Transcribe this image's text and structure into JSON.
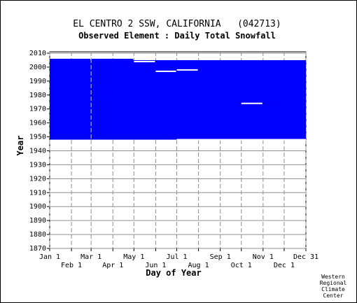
{
  "chart_data": {
    "type": "heatmap",
    "title": "EL CENTRO 2 SSW, CALIFORNIA   (042713)",
    "subtitle": "Observed Element : Daily Total Snowfall",
    "xlabel": "Day of Year",
    "ylabel": "Year",
    "ylim": [
      1870,
      2011
    ],
    "xlim": [
      1,
      366
    ],
    "yticks": [
      1870,
      1880,
      1890,
      1900,
      1910,
      1920,
      1930,
      1940,
      1950,
      1960,
      1970,
      1980,
      1990,
      2000,
      2010
    ],
    "xticks_top_row": [
      {
        "label": "Jan 1",
        "day": 1
      },
      {
        "label": "Mar 1",
        "day": 60
      },
      {
        "label": "May 1",
        "day": 121
      },
      {
        "label": "Jul 1",
        "day": 182
      },
      {
        "label": "Sep 1",
        "day": 244
      },
      {
        "label": "Nov 1",
        "day": 305
      },
      {
        "label": "Dec 31",
        "day": 366
      }
    ],
    "xticks_bottom_row": [
      {
        "label": "Feb 1",
        "day": 32
      },
      {
        "label": "Apr 1",
        "day": 91
      },
      {
        "label": "Jun 1",
        "day": 152
      },
      {
        "label": "Aug 1",
        "day": 213
      },
      {
        "label": "Oct 1",
        "day": 274
      },
      {
        "label": "Dec 1",
        "day": 335
      }
    ],
    "grid": true,
    "fill_color": "#0000ff",
    "observed_blocks": [
      {
        "day_start": 1,
        "day_end": 366,
        "year_start": 1948,
        "year_end": 2005
      },
      {
        "day_start": 1,
        "day_end": 59,
        "year_start": 2005,
        "year_end": 2006
      },
      {
        "day_start": 60,
        "day_end": 120,
        "year_start": 2005,
        "year_end": 2006
      }
    ],
    "missing_gaps": [
      {
        "day_start": 121,
        "day_end": 151,
        "year": 2004
      },
      {
        "day_start": 152,
        "day_end": 181,
        "year": 1997
      },
      {
        "day_start": 182,
        "day_end": 212,
        "year": 1998
      },
      {
        "day_start": 274,
        "day_end": 304,
        "year": 1974
      },
      {
        "day_start": 182,
        "day_end": 366,
        "year": 1948
      }
    ]
  },
  "credit": [
    "Western",
    "Regional",
    "Climate",
    "Center"
  ]
}
